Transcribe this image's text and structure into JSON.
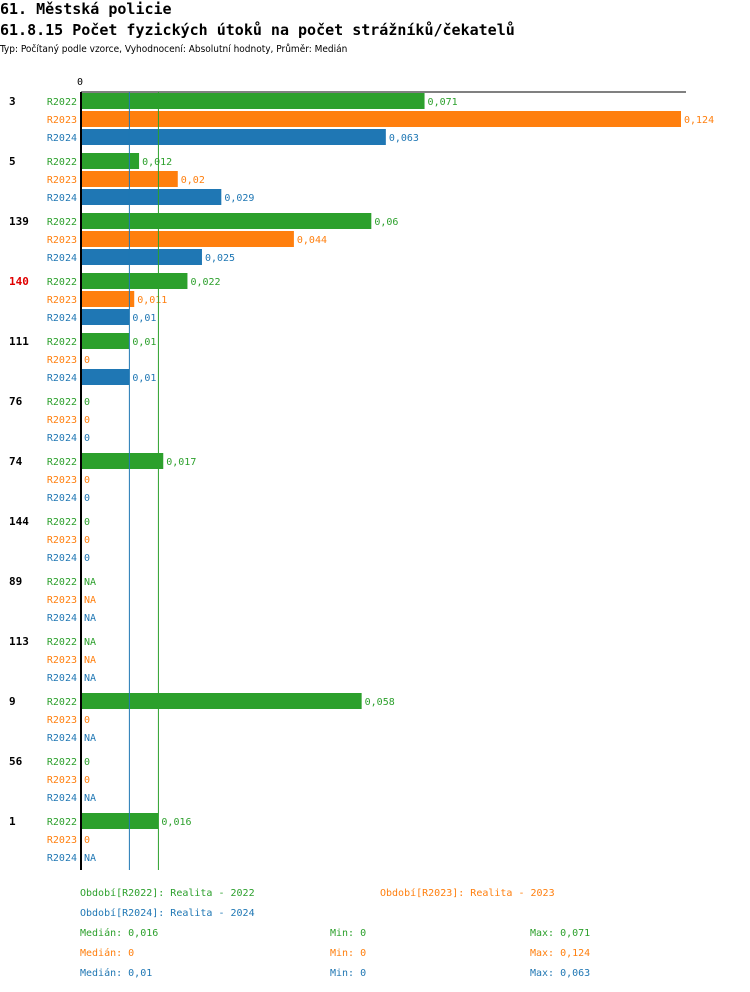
{
  "header": {
    "title": "61. Městská policie",
    "subtitle": "61.8.15 Počet fyzických útoků na počet strážníků/čekatelů",
    "type_line": "Typ: Počítaný podle vzorce, Vyhodnocení: Absolutní hodnoty, Průměr: Medián"
  },
  "colors": {
    "R2022": "#2ca02c",
    "R2023": "#ff7f0e",
    "R2024": "#1f77b4",
    "highlight": "#e00000"
  },
  "chart_data": {
    "type": "bar",
    "orientation": "horizontal",
    "axis_zero_label": "0",
    "xlim": [
      0,
      0.124
    ],
    "series_names": [
      "R2022",
      "R2023",
      "R2024"
    ],
    "highlight_group": "140",
    "groups": [
      {
        "label": "3",
        "values": [
          0.071,
          0.124,
          0.063
        ],
        "labels": [
          "0,071",
          "0,124",
          "0,063"
        ]
      },
      {
        "label": "5",
        "values": [
          0.012,
          0.02,
          0.029
        ],
        "labels": [
          "0,012",
          "0,02",
          "0,029"
        ]
      },
      {
        "label": "139",
        "values": [
          0.06,
          0.044,
          0.025
        ],
        "labels": [
          "0,06",
          "0,044",
          "0,025"
        ]
      },
      {
        "label": "140",
        "values": [
          0.022,
          0.011,
          0.01
        ],
        "labels": [
          "0,022",
          "0,011",
          "0,01"
        ]
      },
      {
        "label": "111",
        "values": [
          0.01,
          0,
          0.01
        ],
        "labels": [
          "0,01",
          "0",
          "0,01"
        ]
      },
      {
        "label": "76",
        "values": [
          0,
          0,
          0
        ],
        "labels": [
          "0",
          "0",
          "0"
        ]
      },
      {
        "label": "74",
        "values": [
          0.017,
          0,
          0
        ],
        "labels": [
          "0,017",
          "0",
          "0"
        ]
      },
      {
        "label": "144",
        "values": [
          0,
          0,
          0
        ],
        "labels": [
          "0",
          "0",
          "0"
        ]
      },
      {
        "label": "89",
        "values": [
          null,
          null,
          null
        ],
        "labels": [
          "NA",
          "NA",
          "NA"
        ]
      },
      {
        "label": "113",
        "values": [
          null,
          null,
          null
        ],
        "labels": [
          "NA",
          "NA",
          "NA"
        ]
      },
      {
        "label": "9",
        "values": [
          0.058,
          0,
          null
        ],
        "labels": [
          "0,058",
          "0",
          "NA"
        ]
      },
      {
        "label": "56",
        "values": [
          0,
          0,
          null
        ],
        "labels": [
          "0",
          "0",
          "NA"
        ]
      },
      {
        "label": "1",
        "values": [
          0.016,
          0,
          null
        ],
        "labels": [
          "0,016",
          "0",
          "NA"
        ]
      }
    ],
    "median_lines": [
      {
        "series": "R2022",
        "value": 0.016
      },
      {
        "series": "R2024",
        "value": 0.01
      }
    ]
  },
  "legend": {
    "period_r2022": "Období[R2022]: Realita - 2022",
    "period_r2023": "Období[R2023]: Realita - 2023",
    "period_r2024": "Období[R2024]: Realita - 2024",
    "stats": [
      {
        "series": "R2022",
        "median": "Medián: 0,016",
        "min": "Min: 0",
        "max": "Max: 0,071"
      },
      {
        "series": "R2023",
        "median": "Medián: 0",
        "min": "Min: 0",
        "max": "Max: 0,124"
      },
      {
        "series": "R2024",
        "median": "Medián: 0,01",
        "min": "Min: 0",
        "max": "Max: 0,063"
      }
    ]
  }
}
